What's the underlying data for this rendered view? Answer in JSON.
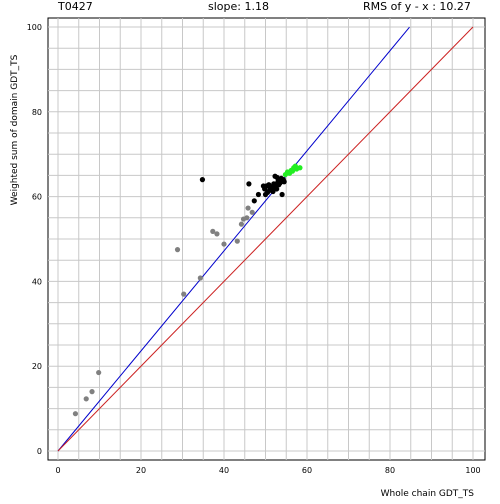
{
  "chart_data": {
    "type": "scatter",
    "title": "T0427",
    "subtitle": "slope: 1.18",
    "annotation": "RMS of  y - x : 10.27",
    "xlabel": "Whole chain GDT_TS",
    "ylabel": "Weighted sum of domain GDT_TS",
    "xlim": [
      0,
      100
    ],
    "ylim": [
      0,
      100
    ],
    "x_ticks": [
      "0",
      "20",
      "40",
      "60",
      "80",
      "100"
    ],
    "y_ticks": [
      "0",
      "20",
      "40",
      "60",
      "80",
      "100"
    ],
    "grid": true,
    "colors": {
      "regression": "#0000cc",
      "diagonal": "#cc2222",
      "grid": "#c8c8c8",
      "group_gray": "#808080",
      "group_black": "#000000",
      "group_green": "#22ee22"
    },
    "lines": [
      {
        "kind": "regression",
        "slope": 1.18,
        "intercept": 0,
        "x_range": [
          0,
          84.7
        ]
      },
      {
        "kind": "diagonal",
        "slope": 1.0,
        "intercept": 0,
        "x_range": [
          0,
          100
        ]
      }
    ],
    "series": [
      {
        "color_key": "group_gray",
        "points": [
          [
            4.2,
            8.8
          ],
          [
            6.8,
            12.3
          ],
          [
            8.2,
            14.0
          ],
          [
            9.8,
            18.5
          ],
          [
            28.8,
            47.5
          ],
          [
            30.3,
            37.0
          ],
          [
            34.3,
            40.8
          ],
          [
            37.3,
            51.8
          ],
          [
            38.3,
            51.2
          ],
          [
            40.0,
            48.8
          ],
          [
            43.2,
            49.5
          ],
          [
            44.2,
            53.5
          ],
          [
            44.7,
            54.7
          ],
          [
            45.5,
            55.0
          ],
          [
            45.8,
            57.3
          ],
          [
            46.8,
            56.3
          ]
        ]
      },
      {
        "color_key": "group_black",
        "points": [
          [
            34.8,
            64.0
          ],
          [
            46.0,
            63.0
          ],
          [
            47.3,
            59.0
          ],
          [
            48.3,
            60.5
          ],
          [
            49.5,
            62.5
          ],
          [
            49.8,
            61.8
          ],
          [
            50.2,
            62.5
          ],
          [
            50.5,
            61.0
          ],
          [
            50.8,
            62.8
          ],
          [
            51.0,
            61.5
          ],
          [
            51.2,
            62.0
          ],
          [
            51.5,
            62.3
          ],
          [
            51.8,
            61.2
          ],
          [
            52.0,
            63.0
          ],
          [
            52.2,
            62.0
          ],
          [
            52.3,
            64.8
          ],
          [
            52.5,
            62.5
          ],
          [
            52.7,
            61.8
          ],
          [
            53.0,
            63.5
          ],
          [
            53.2,
            62.8
          ],
          [
            53.5,
            63.2
          ],
          [
            53.8,
            64.3
          ],
          [
            54.0,
            60.5
          ],
          [
            54.3,
            64.0
          ],
          [
            54.5,
            63.5
          ],
          [
            52.8,
            64.5
          ],
          [
            50.0,
            60.5
          ]
        ]
      },
      {
        "color_key": "group_green",
        "points": [
          [
            54.8,
            65.2
          ],
          [
            55.3,
            65.8
          ],
          [
            55.8,
            65.5
          ],
          [
            56.2,
            66.2
          ],
          [
            56.5,
            66.0
          ],
          [
            56.8,
            66.8
          ],
          [
            57.2,
            67.2
          ],
          [
            57.5,
            66.5
          ],
          [
            58.3,
            66.8
          ]
        ]
      }
    ]
  }
}
